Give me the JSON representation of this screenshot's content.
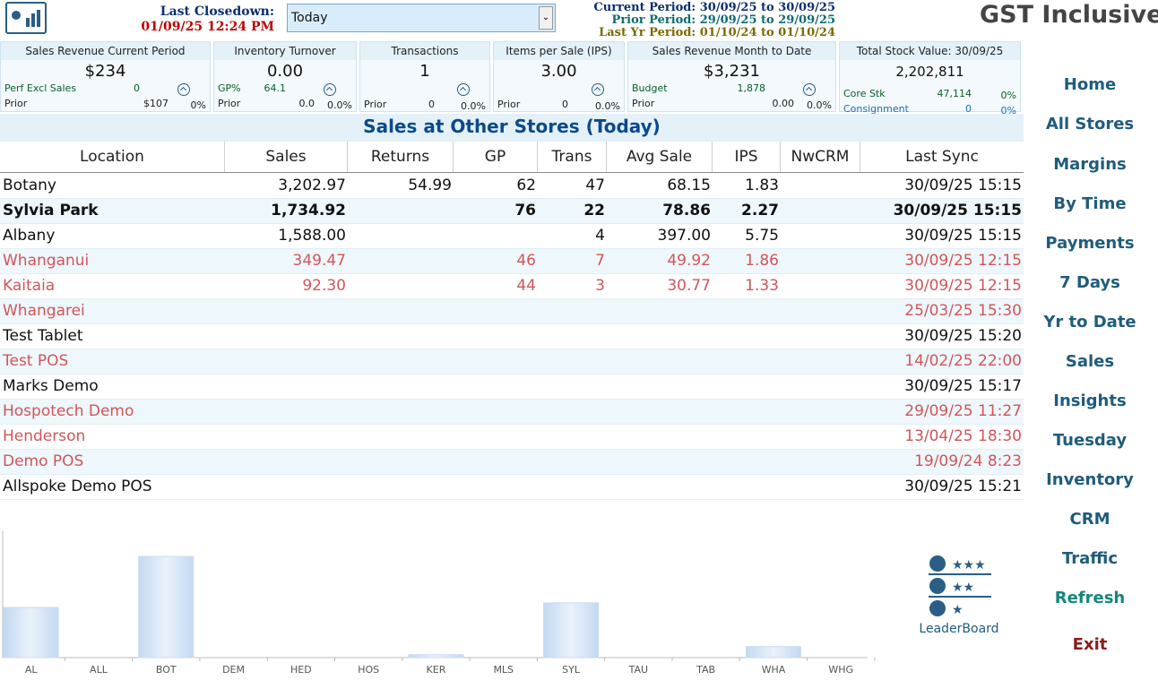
{
  "header": {
    "last_closedown_label": "Last Closedown:",
    "last_closedown": "01/09/25 12:24 PM",
    "period_select": "Today",
    "periods": [
      {
        "text": "Current Period: 30/09/25 to 30/09/25",
        "color": "#0b2f6b"
      },
      {
        "text": "Prior Period: 29/09/25 to 29/09/25",
        "color": "#0d6b73"
      },
      {
        "text": "Last Yr Period: 01/10/24 to 01/10/24",
        "color": "#7a6a00"
      }
    ],
    "mode": "GST Inclusive"
  },
  "cards": [
    {
      "title": "Sales Revenue Current Period",
      "value": "$234",
      "rows": [
        [
          "Perf Excl Sales",
          "0"
        ],
        [
          "Prior",
          "$107",
          "0%"
        ]
      ]
    },
    {
      "title": "Inventory Turnover",
      "value": "0.00",
      "rows": [
        [
          "GP%",
          "64.1"
        ],
        [
          "Prior",
          "0.0",
          "0.0%"
        ]
      ]
    },
    {
      "title": "Transactions",
      "value": "1",
      "rows": [
        [
          "Prior",
          "0",
          "0.0%"
        ]
      ]
    },
    {
      "title": "Items per Sale (IPS)",
      "value": "3.00",
      "rows": [
        [
          "Prior",
          "0",
          "0.0%"
        ]
      ]
    },
    {
      "title": "Sales Revenue Month to Date",
      "value": "$3,231",
      "rows": [
        [
          "Budget",
          "1,878"
        ],
        [
          "Prior",
          "0.00",
          "0.0%"
        ]
      ]
    },
    {
      "title": "Total Stock Value: 30/09/25",
      "value": "2,202,811",
      "rows": [
        [
          "Core Stk",
          "47,114",
          "0%"
        ],
        [
          "Consignment",
          "0",
          "0%"
        ]
      ]
    }
  ],
  "table": {
    "title": "Sales at Other Stores (Today)",
    "columns": [
      "Location",
      "Sales",
      "Returns",
      "GP",
      "Trans",
      "Avg Sale",
      "IPS",
      "NwCRM",
      "Last Sync"
    ],
    "rows": [
      {
        "cells": [
          "Botany",
          "3,202.97",
          "54.99",
          "62",
          "47",
          "68.15",
          "1.83",
          null,
          "30/09/25 15:15"
        ]
      },
      {
        "cells": [
          "Sylvia Park",
          "1,734.92",
          null,
          "76",
          "22",
          "78.86",
          "2.27",
          null,
          "30/09/25 15:15"
        ],
        "bold": true
      },
      {
        "cells": [
          "Albany",
          "1,588.00",
          null,
          null,
          "4",
          "397.00",
          "5.75",
          null,
          "30/09/25 15:15"
        ]
      },
      {
        "cells": [
          "Whanganui",
          "349.47",
          null,
          "46",
          "7",
          "49.92",
          "1.86",
          null,
          "30/09/25 12:15"
        ],
        "color": "#d0555a"
      },
      {
        "cells": [
          "Kaitaia",
          "92.30",
          null,
          "44",
          "3",
          "30.77",
          "1.33",
          null,
          "30/09/25 12:15"
        ],
        "color": "#d0555a"
      },
      {
        "cells": [
          "Whangarei",
          null,
          null,
          null,
          null,
          null,
          null,
          null,
          "25/03/25 15:30"
        ],
        "color": "#d0555a"
      },
      {
        "cells": [
          "Test Tablet",
          null,
          null,
          null,
          null,
          null,
          null,
          null,
          "30/09/25 15:20"
        ]
      },
      {
        "cells": [
          "Test POS",
          null,
          null,
          null,
          null,
          null,
          null,
          null,
          "14/02/25 22:00"
        ],
        "color": "#d0555a"
      },
      {
        "cells": [
          "Marks Demo",
          null,
          null,
          null,
          null,
          null,
          null,
          null,
          "30/09/25 15:17"
        ]
      },
      {
        "cells": [
          "Hospotech Demo",
          null,
          null,
          null,
          null,
          null,
          null,
          null,
          "29/09/25 11:27"
        ],
        "color": "#d0555a"
      },
      {
        "cells": [
          "Henderson",
          null,
          null,
          null,
          null,
          null,
          null,
          null,
          "13/04/25 18:30"
        ],
        "color": "#d0555a"
      },
      {
        "cells": [
          "Demo POS",
          null,
          null,
          null,
          null,
          null,
          null,
          null,
          "19/09/24  8:23"
        ],
        "color": "#d0555a"
      },
      {
        "cells": [
          "Allspoke Demo POS",
          null,
          null,
          null,
          null,
          null,
          null,
          null,
          "30/09/25 15:21"
        ]
      }
    ]
  },
  "chart_data": {
    "type": "bar",
    "categories": [
      "AL",
      "ALL",
      "BOT",
      "DEM",
      "HED",
      "HOS",
      "KER",
      "MLS",
      "SYL",
      "TAU",
      "TAB",
      "WHA",
      "WHG"
    ],
    "values": [
      1588,
      0,
      3202.97,
      0,
      0,
      0,
      92.3,
      0,
      1734.92,
      0,
      0,
      349.47,
      0
    ],
    "color": "#d3e4f6",
    "ylim": [
      0,
      4000
    ]
  },
  "leaderboard": "LeaderBoard",
  "nav": [
    {
      "text": "Home"
    },
    {
      "text": "All Stores"
    },
    {
      "text": "Margins"
    },
    {
      "text": "By Time"
    },
    {
      "text": "Payments"
    },
    {
      "text": "7 Days"
    },
    {
      "text": "Yr to Date"
    },
    {
      "text": "Sales"
    },
    {
      "text": "Insights"
    },
    {
      "text": "Tuesday"
    },
    {
      "text": "Inventory"
    },
    {
      "text": "CRM"
    },
    {
      "text": "Traffic"
    },
    {
      "text": "Refresh",
      "color": "#16867a"
    },
    {
      "text": "Exit",
      "color": "#8b1c1c"
    }
  ]
}
